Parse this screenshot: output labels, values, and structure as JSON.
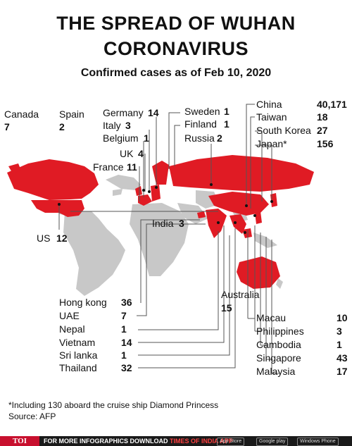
{
  "header": {
    "title_line1": "THE SPREAD OF WUHAN",
    "title_line2": "CORONAVIRUS",
    "subtitle": "Confirmed cases as of Feb 10, 2020"
  },
  "colors": {
    "affected": "#e01b24",
    "unaffected": "#c8c8c8",
    "leader": "#555555"
  },
  "countries": {
    "canada": {
      "name": "Canada",
      "cases": "7"
    },
    "spain": {
      "name": "Spain",
      "cases": "2"
    },
    "germany": {
      "name": "Germany",
      "cases": "14"
    },
    "italy": {
      "name": "Italy",
      "cases": "3"
    },
    "belgium": {
      "name": "Belgium",
      "cases": "1"
    },
    "uk": {
      "name": "UK",
      "cases": "4"
    },
    "france": {
      "name": "France",
      "cases": "11"
    },
    "sweden": {
      "name": "Sweden",
      "cases": "1"
    },
    "finland": {
      "name": "Finland",
      "cases": "1"
    },
    "russia": {
      "name": "Russia",
      "cases": "2"
    },
    "china": {
      "name": "China",
      "cases": "40,171"
    },
    "taiwan": {
      "name": "Taiwan",
      "cases": "18"
    },
    "south_korea": {
      "name": "South Korea",
      "cases": "27"
    },
    "japan": {
      "name": "Japan*",
      "cases": "156"
    },
    "us": {
      "name": "US",
      "cases": "12"
    },
    "india": {
      "name": "India",
      "cases": "3"
    },
    "australia": {
      "name": "Australia",
      "cases": "15"
    },
    "hong_kong": {
      "name": "Hong kong",
      "cases": "36"
    },
    "uae": {
      "name": "UAE",
      "cases": "7"
    },
    "nepal": {
      "name": "Nepal",
      "cases": "1"
    },
    "vietnam": {
      "name": "Vietnam",
      "cases": "14"
    },
    "sri_lanka": {
      "name": "Sri lanka",
      "cases": "1"
    },
    "thailand": {
      "name": "Thailand",
      "cases": "32"
    },
    "macau": {
      "name": "Macau",
      "cases": "10"
    },
    "philippines": {
      "name": "Philippines",
      "cases": "3"
    },
    "cambodia": {
      "name": "Cambodia",
      "cases": "1"
    },
    "singapore": {
      "name": "Singapore",
      "cases": "43"
    },
    "malaysia": {
      "name": "Malaysia",
      "cases": "17"
    }
  },
  "footnote": "*Including 130 aboard the cruise ship Diamond Princess",
  "source": "Source: AFP",
  "footer": {
    "brand": "TOI",
    "promo_prefix": "FOR MORE  INFOGRAPHICS DOWNLOAD ",
    "promo_app": "TIMES OF INDIA  APP",
    "app_store": "App Store",
    "google_play": "Google play",
    "windows": "Windows Phone"
  }
}
